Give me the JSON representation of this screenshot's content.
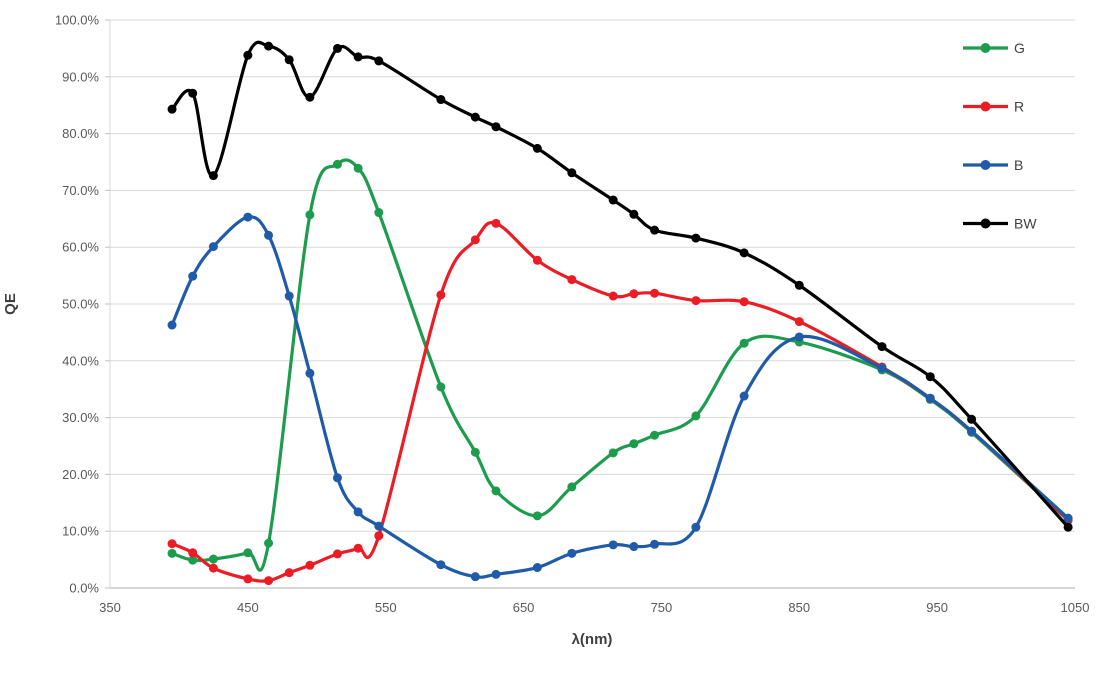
{
  "chart_data": {
    "type": "line",
    "title": "",
    "xlabel": "λ(nm)",
    "ylabel": "QE",
    "xlim": [
      350,
      1050
    ],
    "ylim": [
      0,
      100
    ],
    "grid": "horizontal",
    "line_style": "smooth",
    "marker": "circle",
    "legend_position": "inside-top-right",
    "x_ticks": [
      {
        "value": 350,
        "label": "350"
      },
      {
        "value": 450,
        "label": "450"
      },
      {
        "value": 550,
        "label": "550"
      },
      {
        "value": 650,
        "label": "650"
      },
      {
        "value": 750,
        "label": "750"
      },
      {
        "value": 850,
        "label": "850"
      },
      {
        "value": 950,
        "label": "950"
      },
      {
        "value": 1050,
        "label": "1050"
      }
    ],
    "y_ticks": [
      {
        "value": 0,
        "label": "0.0%"
      },
      {
        "value": 10,
        "label": "10.0%"
      },
      {
        "value": 20,
        "label": "20.0%"
      },
      {
        "value": 30,
        "label": "30.0%"
      },
      {
        "value": 40,
        "label": "40.0%"
      },
      {
        "value": 50,
        "label": "50.0%"
      },
      {
        "value": 60,
        "label": "60.0%"
      },
      {
        "value": 70,
        "label": "70.0%"
      },
      {
        "value": 80,
        "label": "80.0%"
      },
      {
        "value": 90,
        "label": "90.0%"
      },
      {
        "value": 100,
        "label": "100.0%"
      }
    ],
    "series": [
      {
        "name": "G",
        "color": "#1E9C4D",
        "x": [
          395,
          410,
          425,
          450,
          465,
          495,
          515,
          530,
          545,
          590,
          615,
          630,
          660,
          685,
          715,
          730,
          745,
          775,
          810,
          850,
          910,
          945,
          975,
          1045
        ],
        "y": [
          6.1,
          4.9,
          5.1,
          6.2,
          7.9,
          65.7,
          74.6,
          73.9,
          66.1,
          35.4,
          23.9,
          17.1,
          12.7,
          17.8,
          23.8,
          25.4,
          26.9,
          30.3,
          43.1,
          43.3,
          38.4,
          33.2,
          27.4,
          11.9
        ]
      },
      {
        "name": "R",
        "color": "#EC1C24",
        "x": [
          395,
          410,
          425,
          450,
          465,
          480,
          495,
          515,
          530,
          545,
          590,
          615,
          630,
          660,
          685,
          715,
          730,
          745,
          775,
          810,
          850,
          910,
          945,
          975,
          1045
        ],
        "y": [
          7.8,
          6.2,
          3.5,
          1.6,
          1.3,
          2.7,
          4.0,
          6.0,
          7.0,
          9.2,
          51.6,
          61.3,
          64.2,
          57.7,
          54.3,
          51.4,
          51.8,
          51.9,
          50.6,
          50.4,
          46.9,
          38.9,
          33.4,
          27.6,
          12.0
        ]
      },
      {
        "name": "B",
        "color": "#1F5BA8",
        "x": [
          395,
          410,
          425,
          450,
          465,
          480,
          495,
          515,
          530,
          545,
          590,
          615,
          630,
          660,
          685,
          715,
          730,
          745,
          775,
          810,
          850,
          910,
          945,
          975,
          1045
        ],
        "y": [
          46.3,
          54.9,
          60.1,
          65.3,
          62.1,
          51.4,
          37.8,
          19.4,
          13.4,
          10.9,
          4.1,
          2.0,
          2.4,
          3.6,
          6.1,
          7.6,
          7.3,
          7.7,
          10.7,
          33.8,
          44.2,
          38.7,
          33.4,
          27.6,
          12.3
        ]
      },
      {
        "name": "BW",
        "color": "#000000",
        "x": [
          395,
          410,
          425,
          450,
          465,
          480,
          495,
          515,
          530,
          545,
          590,
          615,
          630,
          660,
          685,
          715,
          730,
          745,
          775,
          810,
          850,
          910,
          945,
          975,
          1045
        ],
        "y": [
          84.3,
          87.1,
          72.6,
          93.8,
          95.4,
          93.0,
          86.4,
          95.0,
          93.5,
          92.8,
          86.0,
          82.9,
          81.2,
          77.4,
          73.1,
          68.3,
          65.8,
          63.0,
          61.6,
          59.0,
          53.3,
          42.5,
          37.2,
          29.7,
          10.7
        ]
      }
    ]
  },
  "colors": {
    "background": "#FFFFFF",
    "gridline": "#D9D9D9",
    "axis_line": "#BFBFBF",
    "tick_label": "#595959",
    "axis_title": "#404040",
    "legend_label": "#404040"
  }
}
